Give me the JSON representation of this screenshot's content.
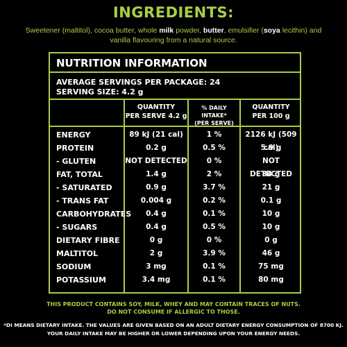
{
  "ingredients": {
    "title": "INGREDIENTS:",
    "parts": [
      {
        "text": "Sweetener (maltitol), cocoa butter, whole ",
        "bold": false
      },
      {
        "text": "milk",
        "bold": true
      },
      {
        "text": " powder, ",
        "bold": false
      },
      {
        "text": "butter",
        "bold": true
      },
      {
        "text": ", emulsifier (",
        "bold": false
      },
      {
        "text": "soya",
        "bold": true
      },
      {
        "text": " lecithin) and vanilla flavouring from a natural source.",
        "bold": false
      }
    ]
  },
  "nutrition": {
    "title": "NUTRITION INFORMATION",
    "servings_per_package": "AVERAGE SERVINGS PER PACKAGE: 24",
    "serving_size": "SERVING SIZE: 4.2 g",
    "columns": {
      "per_serve_line1": "QUANTITY",
      "per_serve_line2": "PER SERVE 4.2 g",
      "daily_line1": "% DAILY INTAKE*",
      "daily_line2": "(PER SERVE)",
      "per_100_line1": "QUANTITY",
      "per_100_line2": "PER 100 g"
    },
    "rows": [
      {
        "label": "ENERGY",
        "per_serve": "89 kJ (21 cal)",
        "daily": "1 %",
        "per_100": "2126 kJ (509 cal)"
      },
      {
        "label": "PROTEIN",
        "per_serve": "0.2 g",
        "daily": "0.5 %",
        "per_100": "5.9 g"
      },
      {
        "label": "- GLUTEN",
        "per_serve": "NOT DETECTED",
        "daily": "0 %",
        "per_100": "NOT DETECTED"
      },
      {
        "label": "FAT, TOTAL",
        "per_serve": "1.4 g",
        "daily": "2 %",
        "per_100": "34 g"
      },
      {
        "label": "- SATURATED",
        "per_serve": "0.9 g",
        "daily": "3.7 %",
        "per_100": "21 g"
      },
      {
        "label": "- TRANS FAT",
        "per_serve": "0.004 g",
        "daily": "0.2 %",
        "per_100": "0.1 g"
      },
      {
        "label": "CARBOHYDRATES",
        "per_serve": "0.4 g",
        "daily": "0.1 %",
        "per_100": "10 g"
      },
      {
        "label": "- SUGARS",
        "per_serve": "0.4 g",
        "daily": "0.5 %",
        "per_100": "10 g"
      },
      {
        "label": "DIETARY FIBRE",
        "per_serve": "0 g",
        "daily": "0 %",
        "per_100": "0 g"
      },
      {
        "label": "MALTITOL",
        "per_serve": "2 g",
        "daily": "3.9 %",
        "per_100": "46 g"
      },
      {
        "label": "SODIUM",
        "per_serve": "3 mg",
        "daily": "0.1 %",
        "per_100": "75 mg"
      },
      {
        "label": "POTASSIUM",
        "per_serve": "3.4 mg",
        "daily": "0.1 %",
        "per_100": "80 mg"
      }
    ]
  },
  "warning": {
    "line1": "THIS PRODUCT CONTAINS SOY, MILK, WHEY AND MAY CONTAIN TRACES OF NUTS.",
    "line2": "DO NOT CONSUME IF ALLERGIC TO THOSE."
  },
  "footnote": {
    "line1": "*DI MEANS DIETARY INTAKE. THE VALUES ARE GIVEN BASED ON AN ADULT DIETARY ENERGY CONSUMPTION OF 8700 KJ.",
    "line2": "YOUR DAILY INTAKE MAY BE HIGHER OR LOWER DEPENDING UPON YOUR ENERGY NEEDS."
  },
  "colors": {
    "accent": "#a9cf46",
    "background": "#000000",
    "text": "#ffffff"
  }
}
